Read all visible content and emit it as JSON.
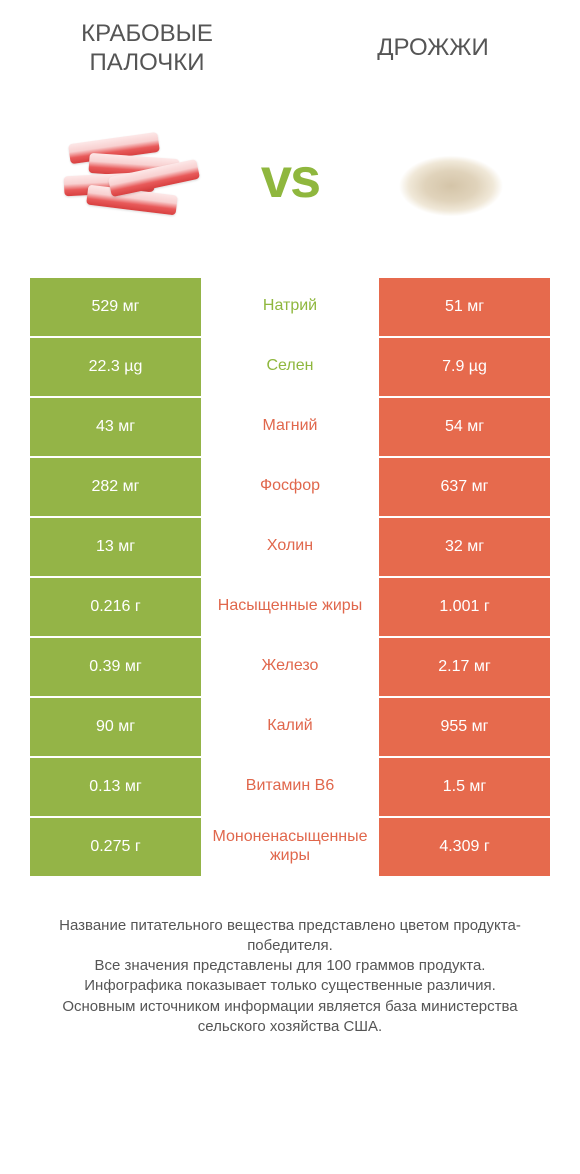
{
  "titles": {
    "left": "Крабовые палочки",
    "right": "Дрожжи"
  },
  "vs": "vs",
  "colors": {
    "left": "#94b447",
    "right": "#e66a4d",
    "left_text": "#8fb73e",
    "right_text": "#e0674c",
    "white": "#ffffff"
  },
  "rows": [
    {
      "label": "Натрий",
      "left": "529 мг",
      "right": "51 мг",
      "winner": "left"
    },
    {
      "label": "Селен",
      "left": "22.3 µg",
      "right": "7.9 µg",
      "winner": "left"
    },
    {
      "label": "Магний",
      "left": "43 мг",
      "right": "54 мг",
      "winner": "right"
    },
    {
      "label": "Фосфор",
      "left": "282 мг",
      "right": "637 мг",
      "winner": "right"
    },
    {
      "label": "Холин",
      "left": "13 мг",
      "right": "32 мг",
      "winner": "right"
    },
    {
      "label": "Насыщенные жиры",
      "left": "0.216 г",
      "right": "1.001 г",
      "winner": "right"
    },
    {
      "label": "Железо",
      "left": "0.39 мг",
      "right": "2.17 мг",
      "winner": "right"
    },
    {
      "label": "Калий",
      "left": "90 мг",
      "right": "955 мг",
      "winner": "right"
    },
    {
      "label": "Витамин B6",
      "left": "0.13 мг",
      "right": "1.5 мг",
      "winner": "right"
    },
    {
      "label": "Мононенасыщенные жиры",
      "left": "0.275 г",
      "right": "4.309 г",
      "winner": "right"
    }
  ],
  "footer": "Название питательного вещества представлено цветом продукта-победителя.\nВсе значения представлены для 100 граммов продукта.\nИнфографика показывает только существенные различия.\nОсновным источником информации является база министерства сельского хозяйства США."
}
